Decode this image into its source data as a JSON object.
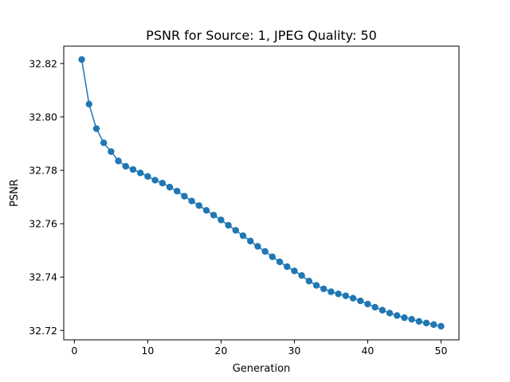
{
  "chart_data": {
    "type": "line",
    "title": "PSNR for Source: 1, JPEG Quality: 50",
    "xlabel": "Generation",
    "ylabel": "PSNR",
    "xlim": [
      -1.45,
      52.45
    ],
    "ylim": [
      32.7165,
      32.8265
    ],
    "xticks": [
      0,
      10,
      20,
      30,
      40,
      50
    ],
    "xtick_labels": [
      "0",
      "10",
      "20",
      "30",
      "40",
      "50"
    ],
    "yticks": [
      32.72,
      32.74,
      32.76,
      32.78,
      32.8,
      32.82
    ],
    "ytick_labels": [
      "32.72",
      "32.74",
      "32.76",
      "32.78",
      "32.80",
      "32.82"
    ],
    "grid": false,
    "series": [
      {
        "color": "#1f77b4",
        "marker": "circle",
        "x": [
          1,
          2,
          3,
          4,
          5,
          6,
          7,
          8,
          9,
          10,
          11,
          12,
          13,
          14,
          15,
          16,
          17,
          18,
          19,
          20,
          21,
          22,
          23,
          24,
          25,
          26,
          27,
          28,
          29,
          30,
          31,
          32,
          33,
          34,
          35,
          36,
          37,
          38,
          39,
          40,
          41,
          42,
          43,
          44,
          45,
          46,
          47,
          48,
          49,
          50
        ],
        "y": [
          32.8215,
          32.8048,
          32.7956,
          32.7903,
          32.787,
          32.7835,
          32.7815,
          32.7803,
          32.779,
          32.7777,
          32.7763,
          32.7752,
          32.7737,
          32.7722,
          32.7703,
          32.7685,
          32.7668,
          32.765,
          32.7632,
          32.7614,
          32.7594,
          32.7575,
          32.7555,
          32.7535,
          32.7515,
          32.7496,
          32.7476,
          32.7457,
          32.7439,
          32.7423,
          32.7406,
          32.7385,
          32.7369,
          32.7356,
          32.7345,
          32.7337,
          32.733,
          32.7321,
          32.7311,
          32.7299,
          32.7287,
          32.7276,
          32.7265,
          32.7256,
          32.7248,
          32.7242,
          32.7234,
          32.7228,
          32.7222,
          32.7216
        ]
      }
    ]
  }
}
